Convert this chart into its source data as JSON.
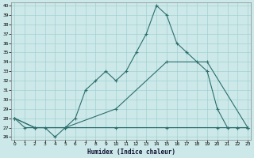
{
  "xlabel": "Humidex (Indice chaleur)",
  "bg_color": "#cce8e8",
  "grid_color": "#99cccc",
  "line_color": "#2d6e6e",
  "series1_x": [
    0,
    1,
    2,
    3,
    4,
    5,
    6,
    7,
    8,
    9,
    10,
    11,
    12,
    13,
    14,
    15,
    16,
    17,
    18,
    19,
    20,
    21,
    22,
    23
  ],
  "series1_y": [
    28,
    27,
    27,
    27,
    26,
    27,
    28,
    31,
    32,
    33,
    32,
    33,
    35,
    37,
    40,
    39,
    36,
    35,
    34,
    33,
    29,
    27,
    27,
    27
  ],
  "series2_x": [
    0,
    2,
    5,
    10,
    15,
    19,
    23
  ],
  "series2_y": [
    28,
    27,
    27,
    29,
    34,
    34,
    27
  ],
  "series3_x": [
    0,
    2,
    5,
    10,
    15,
    20,
    22,
    23
  ],
  "series3_y": [
    28,
    27,
    27,
    27,
    27,
    27,
    27,
    27
  ],
  "ylim_min": 26,
  "ylim_max": 40,
  "xlim_min": 0,
  "xlim_max": 23,
  "ytick_min": 26,
  "ytick_max": 40,
  "xticks": [
    0,
    1,
    2,
    3,
    4,
    5,
    6,
    7,
    8,
    9,
    10,
    11,
    12,
    13,
    14,
    15,
    16,
    17,
    18,
    19,
    20,
    21,
    22,
    23
  ]
}
